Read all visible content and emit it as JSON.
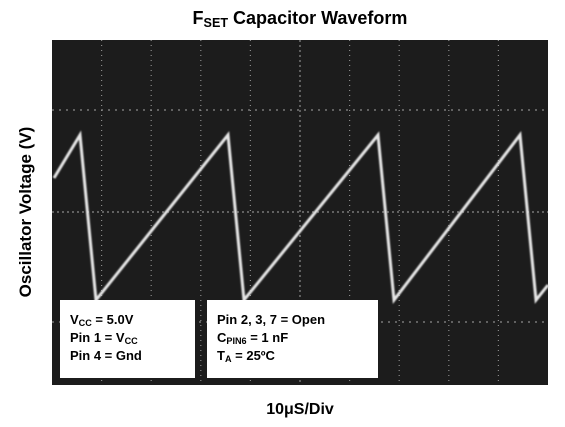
{
  "title": [
    "F",
    "SET",
    " Capacitor Waveform"
  ],
  "y_label": [
    "Oscillator Voltage (V)"
  ],
  "x_label": [
    "10μS/Div"
  ],
  "notes": [
    [
      [
        "V",
        "CC",
        " = 5.0V"
      ],
      [
        "Pin 1 = V",
        "CC"
      ],
      [
        "Pin 4 = Gnd"
      ]
    ],
    [
      [
        "Pin 2, 3, 7 = Open"
      ],
      [
        "C",
        "PIN6",
        " = 1 nF"
      ],
      [
        "T",
        "A",
        " = 25ºC"
      ]
    ]
  ]
}
